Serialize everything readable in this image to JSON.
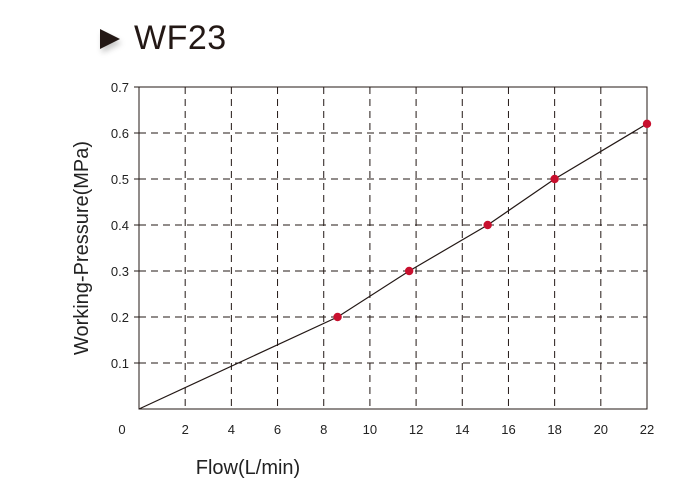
{
  "header": {
    "title": "WF23",
    "icon": "play-triangle-icon"
  },
  "chart_data": {
    "type": "line",
    "title": "WF23",
    "xlabel": "Flow(L/min)",
    "ylabel": "Working-Pressure(MPa)",
    "xlim": [
      0,
      22
    ],
    "ylim": [
      0,
      0.7
    ],
    "x_ticks": [
      "0",
      "2",
      "4",
      "6",
      "8",
      "10",
      "12",
      "14",
      "16",
      "18",
      "20",
      "22"
    ],
    "y_ticks": [
      "0.1",
      "0.2",
      "0.3",
      "0.4",
      "0.5",
      "0.6",
      "0.7"
    ],
    "grid": "dashed",
    "series": [
      {
        "line_color": "#231815",
        "marker_color": "#c8102e",
        "points": [
          {
            "x": 0,
            "y": 0,
            "marker": false
          },
          {
            "x": 8.6,
            "y": 0.2,
            "marker": true
          },
          {
            "x": 11.7,
            "y": 0.3,
            "marker": true
          },
          {
            "x": 15.1,
            "y": 0.4,
            "marker": true
          },
          {
            "x": 18,
            "y": 0.5,
            "marker": true
          },
          {
            "x": 22,
            "y": 0.62,
            "marker": true
          }
        ]
      }
    ]
  }
}
